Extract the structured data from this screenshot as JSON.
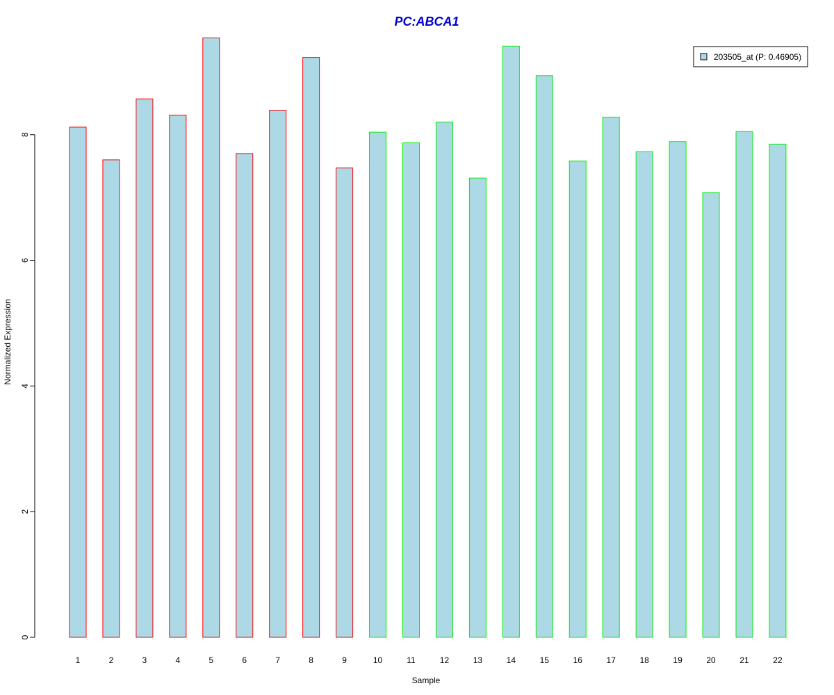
{
  "chart_data": {
    "type": "bar",
    "title": "PC:ABCA1",
    "xlabel": "Sample",
    "ylabel": "Normalized Expression",
    "categories": [
      "1",
      "2",
      "3",
      "4",
      "5",
      "6",
      "7",
      "8",
      "9",
      "10",
      "11",
      "12",
      "13",
      "14",
      "15",
      "16",
      "17",
      "18",
      "19",
      "20",
      "21",
      "22"
    ],
    "series": [
      {
        "name": "203505_at (P: 0.46905)",
        "values": [
          8.12,
          7.6,
          8.57,
          8.31,
          9.54,
          7.7,
          8.39,
          9.23,
          7.47,
          8.04,
          7.87,
          8.2,
          7.31,
          9.41,
          8.94,
          7.58,
          8.28,
          7.73,
          7.89,
          7.08,
          8.05,
          7.85
        ]
      }
    ],
    "groups": [
      {
        "border_color": "#ff0000",
        "categories": [
          "1",
          "2",
          "3",
          "4",
          "5",
          "6",
          "7",
          "8",
          "9"
        ]
      },
      {
        "border_color": "#00ee00",
        "categories": [
          "10",
          "11",
          "12",
          "13",
          "14",
          "15",
          "16",
          "17",
          "18",
          "19",
          "20",
          "21",
          "22"
        ]
      }
    ],
    "ylim": [
      0,
      9.6
    ],
    "yticks": [
      0,
      2,
      4,
      6,
      8
    ],
    "grid": false,
    "legend_position": "top-right"
  },
  "colors": {
    "bar_fill": "#add8e6",
    "title": "#0000cc",
    "axis": "#000000"
  }
}
